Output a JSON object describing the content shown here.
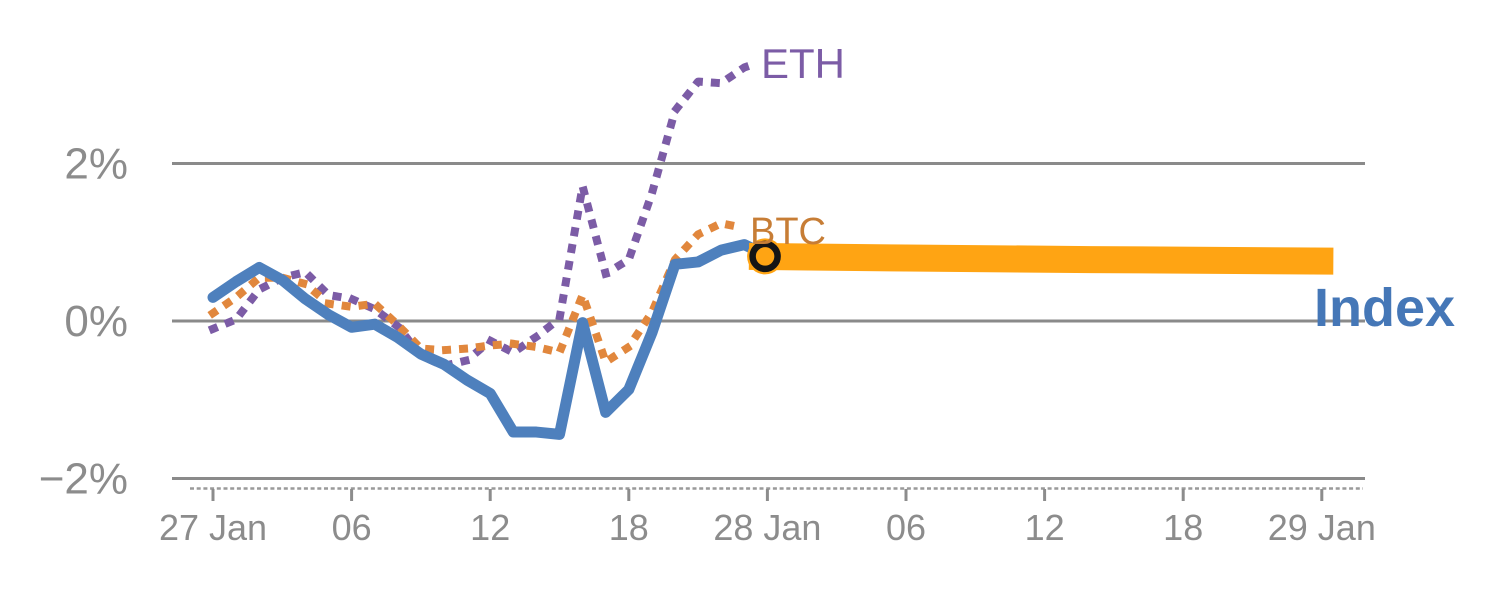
{
  "chart_data": {
    "type": "line",
    "title": "",
    "style": {
      "background": "#FFFFFF",
      "grid_color": "#8A8A8A",
      "minor_tick_color": "#9A9A9A",
      "tick_text_color": "#8C8C8C"
    },
    "x_axis": {
      "unit": "hours from 27 Jan 00:00",
      "tick_hours": [
        0,
        6,
        12,
        18,
        24,
        30,
        36,
        42,
        48
      ],
      "tick_labels": [
        "27 Jan",
        "06",
        "12",
        "18",
        "28 Jan",
        "06",
        "12",
        "18",
        "29 Jan"
      ],
      "range_hours": [
        -1.8,
        50
      ],
      "minor_tick_style": "dashed"
    },
    "y_axis": {
      "tick_values": [
        2,
        0,
        -2
      ],
      "tick_labels": [
        "2%",
        "0%",
        "−2%"
      ],
      "range": [
        -2.3,
        3.8
      ],
      "gridlines": true
    },
    "series": [
      {
        "name": "ETH",
        "style": "dotted",
        "color": "#7C5CA6",
        "label_color": "#7C5CA6",
        "x_hours": [
          0,
          1,
          2,
          3,
          4,
          5,
          6,
          7,
          8,
          9,
          10,
          11,
          12,
          13,
          14,
          15,
          16,
          17,
          18,
          19,
          20,
          21,
          22,
          23,
          23.5
        ],
        "values": [
          -0.1,
          0.02,
          0.4,
          0.55,
          0.62,
          0.33,
          0.28,
          0.15,
          -0.07,
          -0.44,
          -0.57,
          -0.5,
          -0.25,
          -0.4,
          -0.2,
          0.03,
          1.71,
          0.6,
          0.78,
          1.62,
          2.67,
          3.04,
          3.02,
          3.22,
          3.27
        ]
      },
      {
        "name": "BTC",
        "style": "dotted",
        "color": "#E1873D",
        "label_color": "#C77D35",
        "x_hours": [
          0,
          1,
          2,
          3,
          4,
          5,
          6,
          7,
          8,
          9,
          10,
          11,
          12,
          13,
          14,
          15,
          16,
          17,
          18,
          19,
          20,
          21,
          22,
          23
        ],
        "values": [
          0.1,
          0.3,
          0.55,
          0.55,
          0.47,
          0.22,
          0.18,
          0.22,
          -0.05,
          -0.35,
          -0.37,
          -0.35,
          -0.31,
          -0.29,
          -0.33,
          -0.4,
          0.33,
          -0.52,
          -0.33,
          0.11,
          0.78,
          1.1,
          1.24,
          1.18
        ]
      },
      {
        "name": "Index",
        "style": "solid",
        "color": "#4E80BD",
        "label_color": "#4577B7",
        "x_hours": [
          0,
          1,
          2,
          3,
          4,
          5,
          6,
          7,
          8,
          9,
          10,
          11,
          12,
          13,
          14,
          15,
          16,
          17,
          18,
          19,
          20,
          21,
          22,
          23,
          24
        ],
        "values": [
          0.3,
          0.5,
          0.68,
          0.52,
          0.28,
          0.08,
          -0.08,
          -0.04,
          -0.21,
          -0.42,
          -0.55,
          -0.75,
          -0.92,
          -1.41,
          -1.41,
          -1.44,
          -0.02,
          -1.16,
          -0.87,
          -0.15,
          0.72,
          0.75,
          0.9,
          0.97,
          0.83
        ]
      }
    ],
    "projection_bar": {
      "series": "BTC",
      "color": "#FFA413",
      "x_hours": [
        23.2,
        30,
        38,
        48.5
      ],
      "values": [
        0.82,
        0.8,
        0.78,
        0.76
      ]
    },
    "marker": {
      "shape": "open-circle",
      "ring_color": "#151515",
      "fill_color": "#FFA413",
      "x_hour": 23.9,
      "value": 0.82
    }
  }
}
